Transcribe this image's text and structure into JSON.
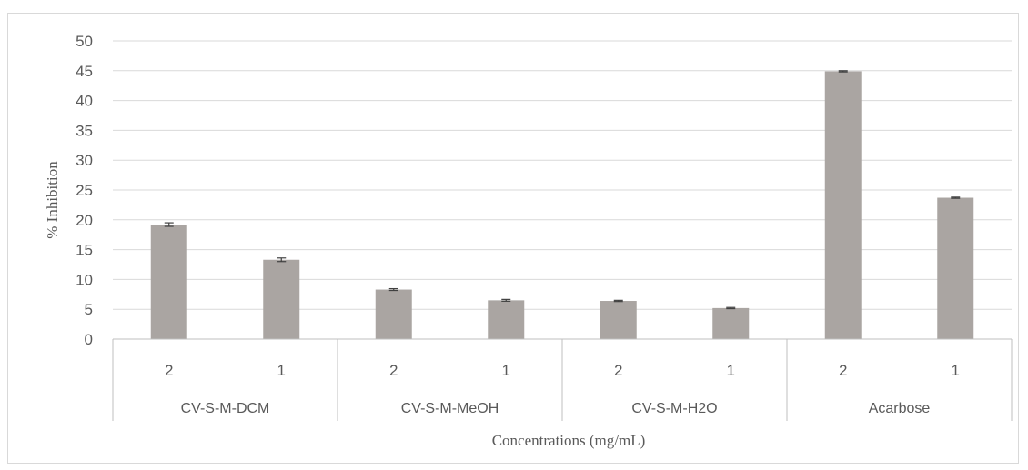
{
  "chart_data": {
    "type": "bar",
    "title": "",
    "xlabel": "Concentrations (mg/mL)",
    "ylabel": "% Inhibition",
    "ylim": [
      0,
      50
    ],
    "yticks": [
      0,
      5,
      10,
      15,
      20,
      25,
      30,
      35,
      40,
      45,
      50
    ],
    "grid": true,
    "groups": [
      {
        "label": "CV-S-M-DCM",
        "categories": [
          "2",
          "1"
        ],
        "values": [
          19.2,
          13.3
        ],
        "errors": [
          0.3,
          0.3
        ]
      },
      {
        "label": "CV-S-M-MeOH",
        "categories": [
          "2",
          "1"
        ],
        "values": [
          8.3,
          6.5
        ],
        "errors": [
          0.15,
          0.15
        ]
      },
      {
        "label": "CV-S-M-H2O",
        "categories": [
          "2",
          "1"
        ],
        "values": [
          6.4,
          5.2
        ],
        "errors": [
          0.1,
          0.1
        ]
      },
      {
        "label": "Acarbose",
        "categories": [
          "2",
          "1"
        ],
        "values": [
          44.9,
          23.7
        ],
        "errors": [
          0.1,
          0.1
        ]
      }
    ],
    "colors": {
      "bar": "#aaa5a2",
      "grid": "#d9d9d9",
      "axis": "#bfbfbf",
      "text": "#595959",
      "error": "#404040"
    }
  }
}
